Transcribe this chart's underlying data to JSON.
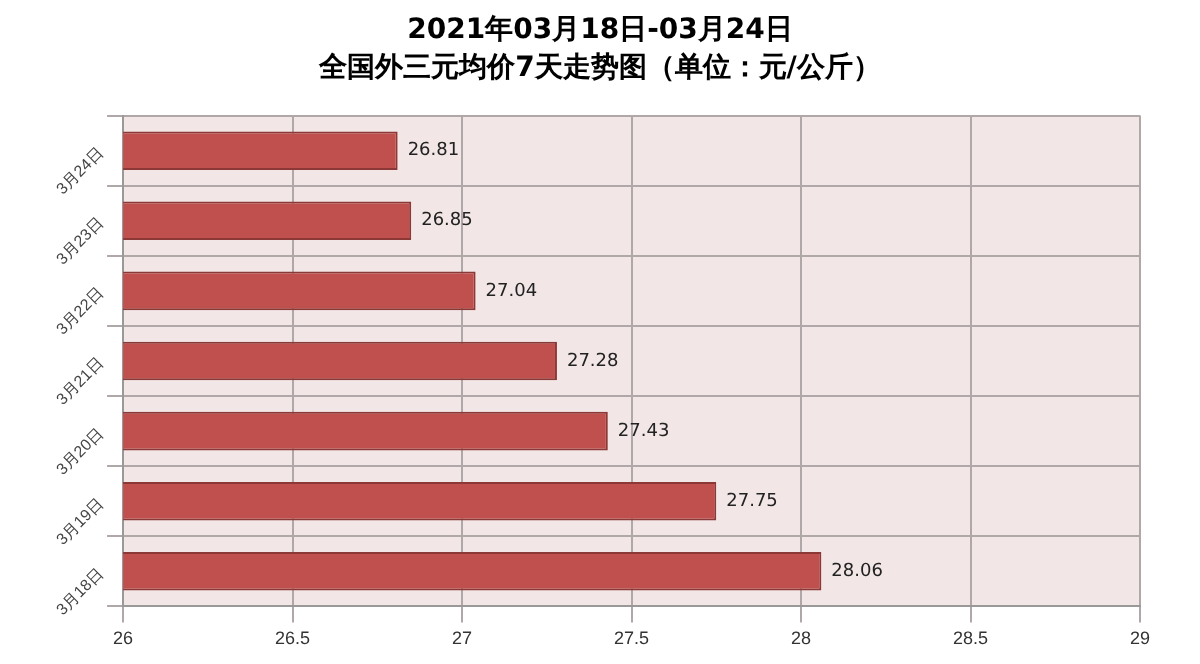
{
  "chart_data": {
    "type": "bar",
    "orientation": "horizontal",
    "title": [
      "2021年03月18日-03月24日",
      "全国外三元均价7天走势图（单位：元/公斤）"
    ],
    "categories": [
      "3月24日",
      "3月23日",
      "3月22日",
      "3月21日",
      "3月20日",
      "3月19日",
      "3月18日"
    ],
    "values": [
      26.81,
      26.85,
      27.04,
      27.28,
      27.43,
      27.75,
      28.06
    ],
    "color": "#c0504d",
    "xlim": [
      26,
      29
    ],
    "xticks": [
      26,
      26.5,
      27,
      27.5,
      28,
      28.5,
      29
    ],
    "grid": true,
    "data_labels": true
  }
}
